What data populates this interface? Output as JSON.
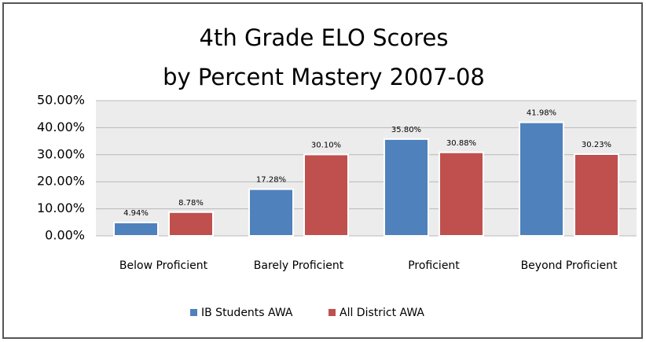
{
  "chart_data": {
    "type": "bar",
    "title": "4th Grade ELO Scores",
    "subtitle": "by Percent Mastery 2007-08",
    "categories": [
      "Below Proficient",
      "Barely Proficient",
      "Proficient",
      "Beyond Proficient"
    ],
    "series": [
      {
        "name": "IB Students AWA",
        "color": "#4f81bd",
        "values": [
          4.94,
          17.28,
          35.8,
          41.98
        ],
        "value_labels": [
          "4.94%",
          "17.28%",
          "35.80%",
          "41.98%"
        ]
      },
      {
        "name": "All District AWA",
        "color": "#c0504d",
        "values": [
          8.78,
          30.1,
          30.88,
          30.23
        ],
        "value_labels": [
          "8.78%",
          "30.10%",
          "30.88%",
          "30.23%"
        ]
      }
    ],
    "ylim": [
      0,
      50
    ],
    "yticks": [
      {
        "value": 0,
        "label": "0.00%"
      },
      {
        "value": 10,
        "label": "10.00%"
      },
      {
        "value": 20,
        "label": "20.00%"
      },
      {
        "value": 30,
        "label": "30.00%"
      },
      {
        "value": 40,
        "label": "40.00%"
      },
      {
        "value": 50,
        "label": "50.00%"
      }
    ],
    "grid": true,
    "legend": "bottom"
  }
}
